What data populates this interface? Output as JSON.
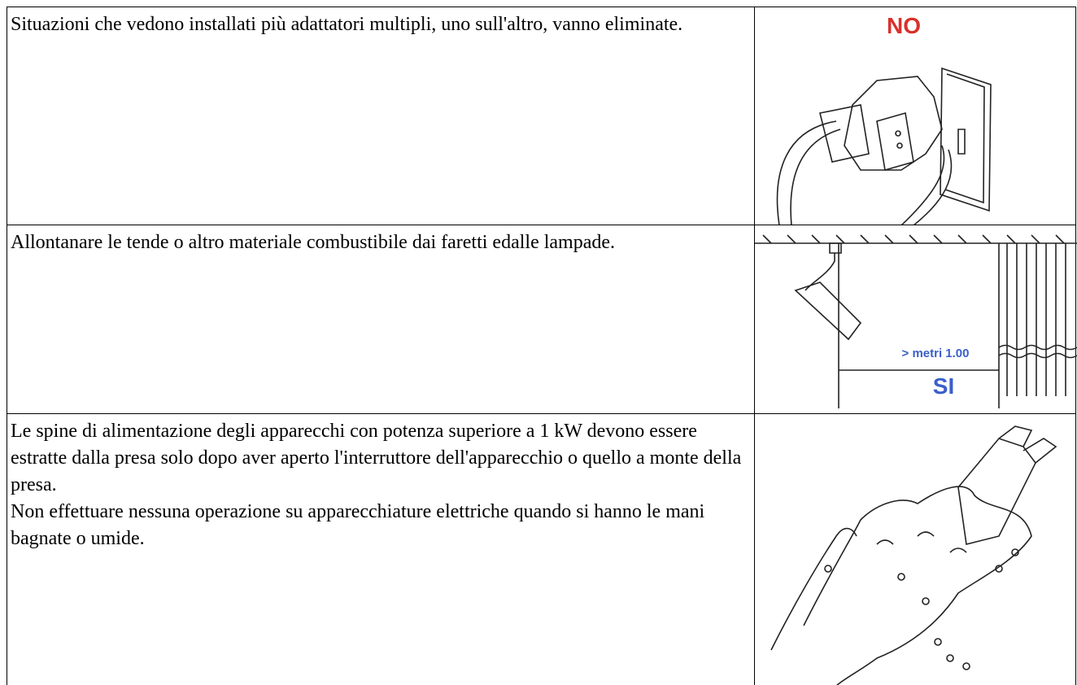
{
  "rows": [
    {
      "paragraphs": [
        "Situazioni che vedono installati più adattatori multipli, uno sull'altro, vanno eliminate."
      ],
      "image_labels": [
        "NO"
      ]
    },
    {
      "paragraphs": [
        "Allontanare le tende o altro materiale combustibile dai faretti edalle lampade."
      ],
      "image_labels": [
        "> metri 1.00",
        "SI"
      ]
    },
    {
      "paragraphs": [
        "Le spine di alimentazione degli apparecchi con potenza superiore a 1 kW devono essere estratte dalla presa solo dopo aver aperto l'interruttore dell'apparecchio o quello a monte della presa.",
        "Non effettuare nessuna operazione su apparecchiature elettriche quando si hanno le mani bagnate o umide."
      ],
      "image_labels": []
    }
  ]
}
